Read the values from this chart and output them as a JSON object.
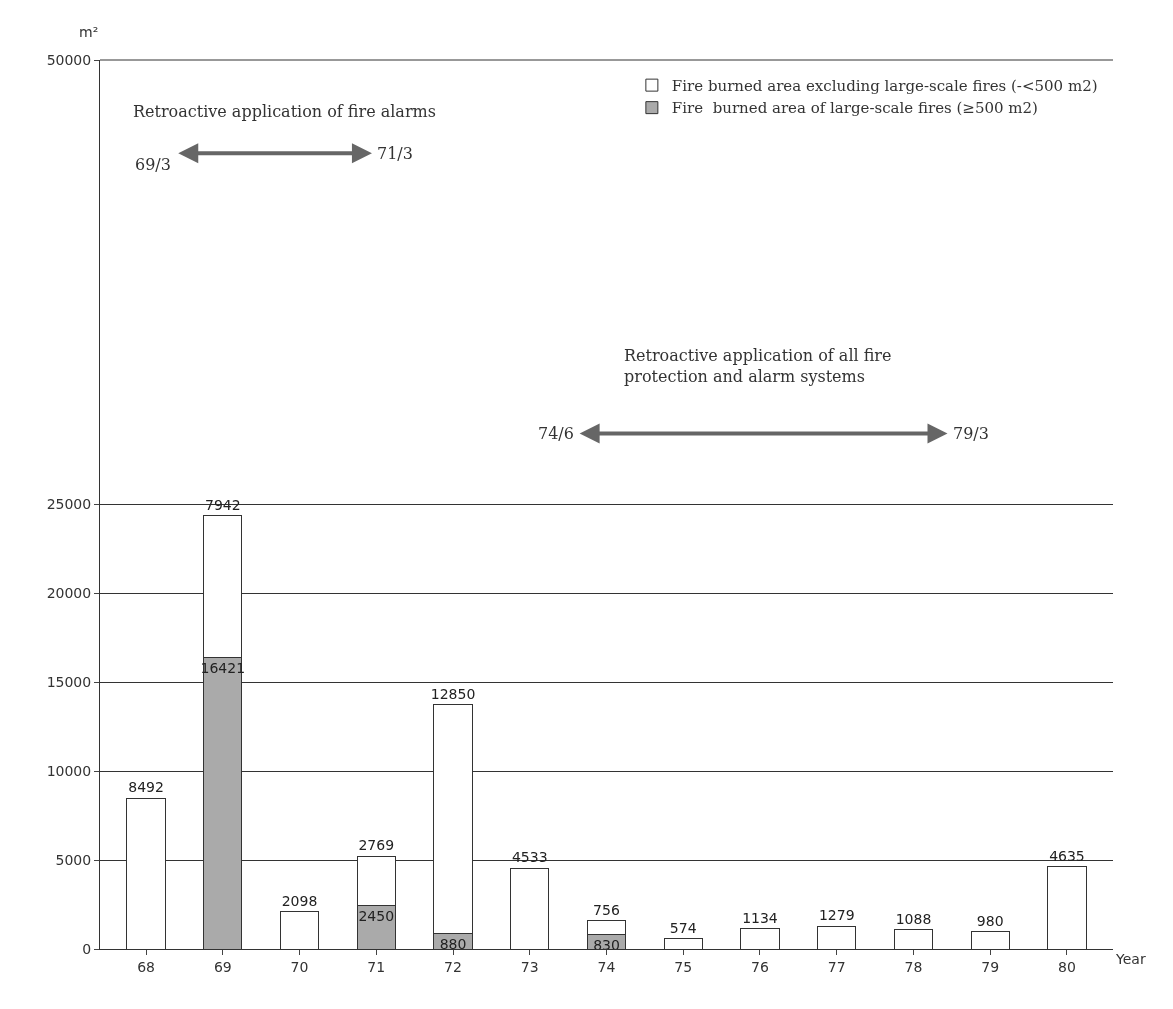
{
  "chart_data": {
    "type": "bar",
    "stacked": true,
    "ylabel": "m²",
    "xlabel": "Year",
    "categories": [
      "68",
      "69",
      "70",
      "71",
      "72",
      "73",
      "74",
      "75",
      "76",
      "77",
      "78",
      "79",
      "80"
    ],
    "series": [
      {
        "name": "Fire  burned area of large-scale fires (≥500 m2)",
        "color": "#aaaaaa",
        "values": [
          null,
          16421,
          null,
          2450,
          880,
          null,
          830,
          null,
          null,
          null,
          null,
          null,
          null
        ]
      },
      {
        "name": "Fire burned area excluding large-scale fires (-<500 m2)",
        "color": "#ffffff",
        "values": [
          8492,
          7942,
          2098,
          2769,
          12850,
          4533,
          756,
          574,
          1134,
          1279,
          1088,
          980,
          4635
        ]
      }
    ],
    "ylim": [
      0,
      50000
    ],
    "yticks": [
      0,
      5000,
      10000,
      15000,
      20000,
      25000,
      50000
    ],
    "grid": "y",
    "legend": "top right",
    "data_labels": true,
    "annotations": [
      "Retroactive application of fire alarms",
      "69/3",
      "71/3",
      "Retroactive application of all fire protection and alarm systems",
      "74/6",
      "79/3"
    ]
  }
}
